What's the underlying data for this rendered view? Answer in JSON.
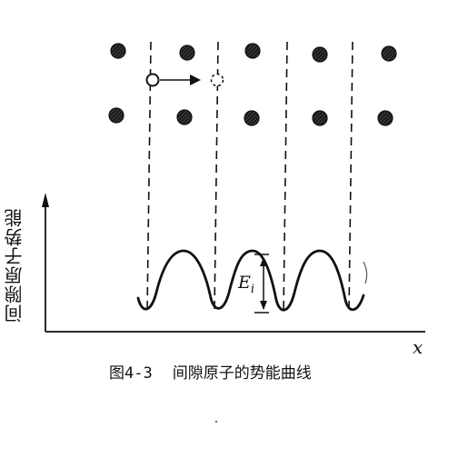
{
  "figure": {
    "ylabel": "间隙原子势能",
    "xlabel": "x",
    "energy_label": "E",
    "energy_subscript": "i",
    "caption_number": "图4-3",
    "caption_text": "间隙原子的势能曲线"
  },
  "colors": {
    "ink": "#111111",
    "atom_fill": "#222222",
    "background": "#ffffff"
  },
  "lattice": {
    "rows": 2,
    "columns": 5,
    "interstitial_moving": true
  }
}
